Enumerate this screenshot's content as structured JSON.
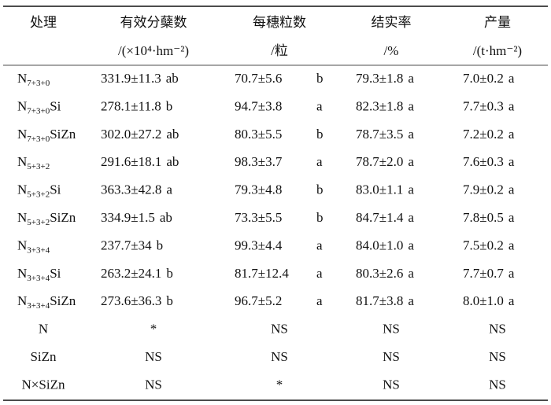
{
  "table": {
    "header": [
      "处理",
      "有效分蘖数",
      "每穗粒数",
      "结实率",
      "产量"
    ],
    "units": [
      "/(×10⁴·hm⁻²)",
      "/粒",
      "/%",
      "/(t·hm⁻²)"
    ],
    "rows": [
      {
        "treatment": {
          "main": "N",
          "sub": "7+3+0"
        },
        "cells": [
          {
            "value": "331.9±11.3",
            "sig": "ab"
          },
          {
            "value": "70.7±5.6",
            "sig": "b"
          },
          {
            "value": "79.3±1.8",
            "sig": "a"
          },
          {
            "value": "7.0±0.2",
            "sig": "a"
          }
        ]
      },
      {
        "treatment": {
          "main": "N",
          "sub": "7+3+0",
          "suffix": "Si"
        },
        "cells": [
          {
            "value": "278.1±11.8",
            "sig": "b"
          },
          {
            "value": "94.7±3.8",
            "sig": "a"
          },
          {
            "value": "82.3±1.8",
            "sig": "a"
          },
          {
            "value": "7.7±0.3",
            "sig": "a"
          }
        ]
      },
      {
        "treatment": {
          "main": "N",
          "sub": "7+3+0",
          "suffix": "SiZn"
        },
        "cells": [
          {
            "value": "302.0±27.2",
            "sig": "ab"
          },
          {
            "value": "80.3±5.5",
            "sig": "b"
          },
          {
            "value": "78.7±3.5",
            "sig": "a"
          },
          {
            "value": "7.2±0.2",
            "sig": "a"
          }
        ]
      },
      {
        "treatment": {
          "main": "N",
          "sub": "5+3+2"
        },
        "cells": [
          {
            "value": "291.6±18.1",
            "sig": "ab"
          },
          {
            "value": "98.3±3.7",
            "sig": "a"
          },
          {
            "value": "78.7±2.0",
            "sig": "a"
          },
          {
            "value": "7.6±0.3",
            "sig": "a"
          }
        ]
      },
      {
        "treatment": {
          "main": "N",
          "sub": "5+3+2",
          "suffix": "Si"
        },
        "cells": [
          {
            "value": "363.3±42.8",
            "sig": "a"
          },
          {
            "value": "79.3±4.8",
            "sig": "b"
          },
          {
            "value": "83.0±1.1",
            "sig": "a"
          },
          {
            "value": "7.9±0.2",
            "sig": "a"
          }
        ]
      },
      {
        "treatment": {
          "main": "N",
          "sub": "5+3+2",
          "suffix": "SiZn"
        },
        "cells": [
          {
            "value": "334.9±1.5",
            "sig": "ab"
          },
          {
            "value": "73.3±5.5",
            "sig": "b"
          },
          {
            "value": "84.7±1.4",
            "sig": "a"
          },
          {
            "value": "7.8±0.5",
            "sig": "a"
          }
        ]
      },
      {
        "treatment": {
          "main": "N",
          "sub": "3+3+4"
        },
        "cells": [
          {
            "value": "237.7±34",
            "sig": "b"
          },
          {
            "value": "99.3±4.4",
            "sig": "a"
          },
          {
            "value": "84.0±1.0",
            "sig": "a"
          },
          {
            "value": "7.5±0.2",
            "sig": "a"
          }
        ]
      },
      {
        "treatment": {
          "main": "N",
          "sub": "3+3+4",
          "suffix": "Si"
        },
        "cells": [
          {
            "value": "263.2±24.1",
            "sig": "b"
          },
          {
            "value": "81.7±12.4",
            "sig": "a"
          },
          {
            "value": "80.3±2.6",
            "sig": "a"
          },
          {
            "value": "7.7±0.7",
            "sig": "a"
          }
        ]
      },
      {
        "treatment": {
          "main": "N",
          "sub": "3+3+4",
          "suffix": "SiZn"
        },
        "cells": [
          {
            "value": "273.6±36.3",
            "sig": "b"
          },
          {
            "value": "96.7±5.2",
            "sig": "a"
          },
          {
            "value": "81.7±3.8",
            "sig": "a"
          },
          {
            "value": "8.0±1.0",
            "sig": "a"
          }
        ]
      }
    ],
    "tests": [
      {
        "label": "N",
        "cells": [
          "*",
          "NS",
          "NS",
          "NS"
        ]
      },
      {
        "label": "SiZn",
        "cells": [
          "NS",
          "NS",
          "NS",
          "NS"
        ]
      },
      {
        "label": "N×SiZn",
        "cells": [
          "NS",
          "*",
          "NS",
          "NS"
        ]
      }
    ]
  }
}
